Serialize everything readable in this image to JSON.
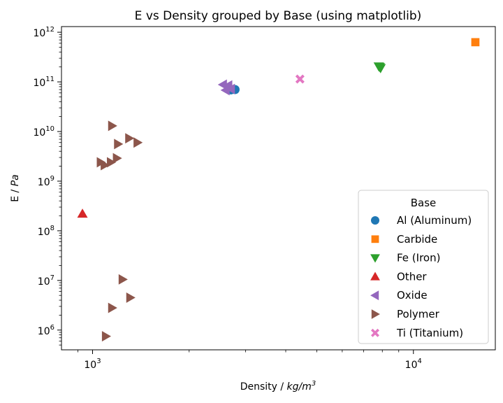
{
  "chart_data": {
    "type": "scatter",
    "title": "E vs Density grouped by Base (using matplotlib)",
    "xlabel": {
      "prefix": "Density / ",
      "unit": "kg/m",
      "exp": "3"
    },
    "ylabel": {
      "prefix": "E / ",
      "unit": "Pa"
    },
    "xscale": "log",
    "yscale": "log",
    "xlim": [
      800,
      18000
    ],
    "ylim": [
      400000,
      1300000000000.0
    ],
    "x_ticks": [
      {
        "base": "10",
        "exp": "3",
        "value": 1000
      },
      {
        "base": "10",
        "exp": "4",
        "value": 10000
      }
    ],
    "y_ticks": [
      {
        "base": "10",
        "exp": "6",
        "value": 1000000.0
      },
      {
        "base": "10",
        "exp": "7",
        "value": 10000000.0
      },
      {
        "base": "10",
        "exp": "8",
        "value": 100000000.0
      },
      {
        "base": "10",
        "exp": "9",
        "value": 1000000000.0
      },
      {
        "base": "10",
        "exp": "10",
        "value": 10000000000.0
      },
      {
        "base": "10",
        "exp": "11",
        "value": 100000000000.0
      },
      {
        "base": "10",
        "exp": "12",
        "value": 1000000000000.0
      }
    ],
    "legend": {
      "title": "Base",
      "placement": "lower-right"
    },
    "grid": false,
    "series": [
      {
        "name": "Al (Aluminum)",
        "color": "#1f77b4",
        "marker": "circle",
        "points": [
          [
            2780,
            70000000000.0
          ],
          [
            2700,
            69000000000.0
          ]
        ]
      },
      {
        "name": "Carbide",
        "color": "#ff7f0e",
        "marker": "square",
        "points": [
          [
            15600,
            630000000000.0
          ]
        ]
      },
      {
        "name": "Fe (Iron)",
        "color": "#2ca02c",
        "marker": "triangle-down",
        "points": [
          [
            7850,
            200000000000.0
          ],
          [
            7900,
            190000000000.0
          ],
          [
            7800,
            205000000000.0
          ]
        ]
      },
      {
        "name": "Other",
        "color": "#d62728",
        "marker": "triangle-up",
        "points": [
          [
            930,
            220000000.0
          ]
        ]
      },
      {
        "name": "Oxide",
        "color": "#9467bd",
        "marker": "triangle-left",
        "points": [
          [
            2550,
            88000000000.0
          ],
          [
            2600,
            68000000000.0
          ],
          [
            2650,
            85000000000.0
          ],
          [
            2700,
            72000000000.0
          ]
        ]
      },
      {
        "name": "Polymer",
        "color": "#8c564b",
        "marker": "triangle-right",
        "points": [
          [
            1150,
            13000000000.0
          ],
          [
            1300,
            7300000000.0
          ],
          [
            1200,
            5600000000.0
          ],
          [
            1380,
            6000000000.0
          ],
          [
            1190,
            2900000000.0
          ],
          [
            1140,
            2400000000.0
          ],
          [
            1060,
            2400000000.0
          ],
          [
            1090,
            2100000000.0
          ],
          [
            1240,
            10500000.0
          ],
          [
            1310,
            4500000.0
          ],
          [
            1150,
            2800000.0
          ],
          [
            1100,
            750000.0
          ]
        ]
      },
      {
        "name": "Ti (Titanium)",
        "color": "#e377c2",
        "marker": "x",
        "points": [
          [
            4430,
            114000000000.0
          ]
        ]
      }
    ]
  }
}
